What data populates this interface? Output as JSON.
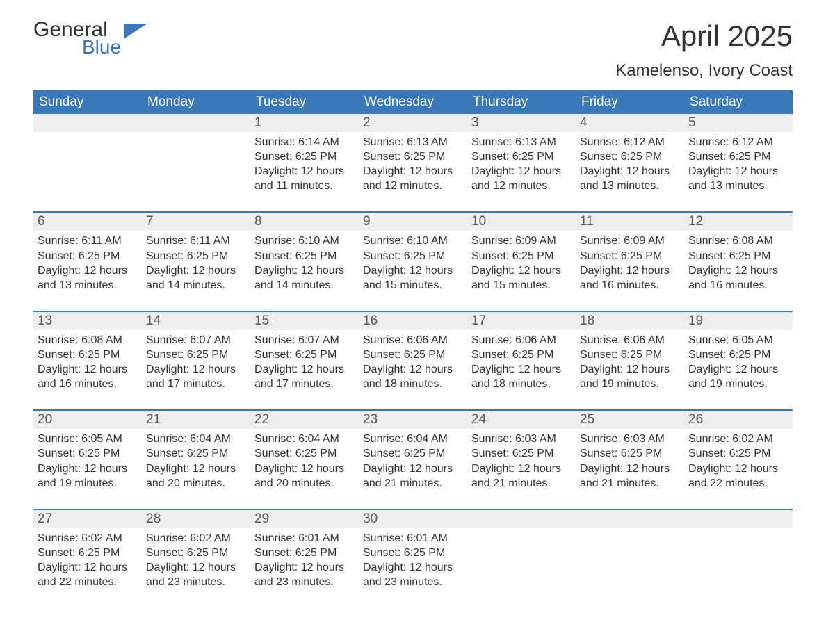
{
  "logo": {
    "word1": "General",
    "word2": "Blue",
    "brand_color": "#3b78b8"
  },
  "title": "April 2025",
  "location": "Kamelenso, Ivory Coast",
  "colors": {
    "header_bg": "#3b78b8",
    "header_text": "#ffffff",
    "daynum_bg": "#eeeeee",
    "rule": "#3b78b8",
    "body_text": "#333333",
    "page_bg": "#ffffff"
  },
  "typography": {
    "title_fontsize": 42,
    "location_fontsize": 24,
    "weekday_fontsize": 19,
    "daynum_fontsize": 19,
    "body_fontsize": 16
  },
  "weekdays": [
    "Sunday",
    "Monday",
    "Tuesday",
    "Wednesday",
    "Thursday",
    "Friday",
    "Saturday"
  ],
  "weeks": [
    [
      {
        "day": "",
        "sunrise": "",
        "sunset": "",
        "daylight": ""
      },
      {
        "day": "",
        "sunrise": "",
        "sunset": "",
        "daylight": ""
      },
      {
        "day": "1",
        "sunrise": "Sunrise: 6:14 AM",
        "sunset": "Sunset: 6:25 PM",
        "daylight": "Daylight: 12 hours and 11 minutes."
      },
      {
        "day": "2",
        "sunrise": "Sunrise: 6:13 AM",
        "sunset": "Sunset: 6:25 PM",
        "daylight": "Daylight: 12 hours and 12 minutes."
      },
      {
        "day": "3",
        "sunrise": "Sunrise: 6:13 AM",
        "sunset": "Sunset: 6:25 PM",
        "daylight": "Daylight: 12 hours and 12 minutes."
      },
      {
        "day": "4",
        "sunrise": "Sunrise: 6:12 AM",
        "sunset": "Sunset: 6:25 PM",
        "daylight": "Daylight: 12 hours and 13 minutes."
      },
      {
        "day": "5",
        "sunrise": "Sunrise: 6:12 AM",
        "sunset": "Sunset: 6:25 PM",
        "daylight": "Daylight: 12 hours and 13 minutes."
      }
    ],
    [
      {
        "day": "6",
        "sunrise": "Sunrise: 6:11 AM",
        "sunset": "Sunset: 6:25 PM",
        "daylight": "Daylight: 12 hours and 13 minutes."
      },
      {
        "day": "7",
        "sunrise": "Sunrise: 6:11 AM",
        "sunset": "Sunset: 6:25 PM",
        "daylight": "Daylight: 12 hours and 14 minutes."
      },
      {
        "day": "8",
        "sunrise": "Sunrise: 6:10 AM",
        "sunset": "Sunset: 6:25 PM",
        "daylight": "Daylight: 12 hours and 14 minutes."
      },
      {
        "day": "9",
        "sunrise": "Sunrise: 6:10 AM",
        "sunset": "Sunset: 6:25 PM",
        "daylight": "Daylight: 12 hours and 15 minutes."
      },
      {
        "day": "10",
        "sunrise": "Sunrise: 6:09 AM",
        "sunset": "Sunset: 6:25 PM",
        "daylight": "Daylight: 12 hours and 15 minutes."
      },
      {
        "day": "11",
        "sunrise": "Sunrise: 6:09 AM",
        "sunset": "Sunset: 6:25 PM",
        "daylight": "Daylight: 12 hours and 16 minutes."
      },
      {
        "day": "12",
        "sunrise": "Sunrise: 6:08 AM",
        "sunset": "Sunset: 6:25 PM",
        "daylight": "Daylight: 12 hours and 16 minutes."
      }
    ],
    [
      {
        "day": "13",
        "sunrise": "Sunrise: 6:08 AM",
        "sunset": "Sunset: 6:25 PM",
        "daylight": "Daylight: 12 hours and 16 minutes."
      },
      {
        "day": "14",
        "sunrise": "Sunrise: 6:07 AM",
        "sunset": "Sunset: 6:25 PM",
        "daylight": "Daylight: 12 hours and 17 minutes."
      },
      {
        "day": "15",
        "sunrise": "Sunrise: 6:07 AM",
        "sunset": "Sunset: 6:25 PM",
        "daylight": "Daylight: 12 hours and 17 minutes."
      },
      {
        "day": "16",
        "sunrise": "Sunrise: 6:06 AM",
        "sunset": "Sunset: 6:25 PM",
        "daylight": "Daylight: 12 hours and 18 minutes."
      },
      {
        "day": "17",
        "sunrise": "Sunrise: 6:06 AM",
        "sunset": "Sunset: 6:25 PM",
        "daylight": "Daylight: 12 hours and 18 minutes."
      },
      {
        "day": "18",
        "sunrise": "Sunrise: 6:06 AM",
        "sunset": "Sunset: 6:25 PM",
        "daylight": "Daylight: 12 hours and 19 minutes."
      },
      {
        "day": "19",
        "sunrise": "Sunrise: 6:05 AM",
        "sunset": "Sunset: 6:25 PM",
        "daylight": "Daylight: 12 hours and 19 minutes."
      }
    ],
    [
      {
        "day": "20",
        "sunrise": "Sunrise: 6:05 AM",
        "sunset": "Sunset: 6:25 PM",
        "daylight": "Daylight: 12 hours and 19 minutes."
      },
      {
        "day": "21",
        "sunrise": "Sunrise: 6:04 AM",
        "sunset": "Sunset: 6:25 PM",
        "daylight": "Daylight: 12 hours and 20 minutes."
      },
      {
        "day": "22",
        "sunrise": "Sunrise: 6:04 AM",
        "sunset": "Sunset: 6:25 PM",
        "daylight": "Daylight: 12 hours and 20 minutes."
      },
      {
        "day": "23",
        "sunrise": "Sunrise: 6:04 AM",
        "sunset": "Sunset: 6:25 PM",
        "daylight": "Daylight: 12 hours and 21 minutes."
      },
      {
        "day": "24",
        "sunrise": "Sunrise: 6:03 AM",
        "sunset": "Sunset: 6:25 PM",
        "daylight": "Daylight: 12 hours and 21 minutes."
      },
      {
        "day": "25",
        "sunrise": "Sunrise: 6:03 AM",
        "sunset": "Sunset: 6:25 PM",
        "daylight": "Daylight: 12 hours and 21 minutes."
      },
      {
        "day": "26",
        "sunrise": "Sunrise: 6:02 AM",
        "sunset": "Sunset: 6:25 PM",
        "daylight": "Daylight: 12 hours and 22 minutes."
      }
    ],
    [
      {
        "day": "27",
        "sunrise": "Sunrise: 6:02 AM",
        "sunset": "Sunset: 6:25 PM",
        "daylight": "Daylight: 12 hours and 22 minutes."
      },
      {
        "day": "28",
        "sunrise": "Sunrise: 6:02 AM",
        "sunset": "Sunset: 6:25 PM",
        "daylight": "Daylight: 12 hours and 23 minutes."
      },
      {
        "day": "29",
        "sunrise": "Sunrise: 6:01 AM",
        "sunset": "Sunset: 6:25 PM",
        "daylight": "Daylight: 12 hours and 23 minutes."
      },
      {
        "day": "30",
        "sunrise": "Sunrise: 6:01 AM",
        "sunset": "Sunset: 6:25 PM",
        "daylight": "Daylight: 12 hours and 23 minutes."
      },
      {
        "day": "",
        "sunrise": "",
        "sunset": "",
        "daylight": ""
      },
      {
        "day": "",
        "sunrise": "",
        "sunset": "",
        "daylight": ""
      },
      {
        "day": "",
        "sunrise": "",
        "sunset": "",
        "daylight": ""
      }
    ]
  ]
}
